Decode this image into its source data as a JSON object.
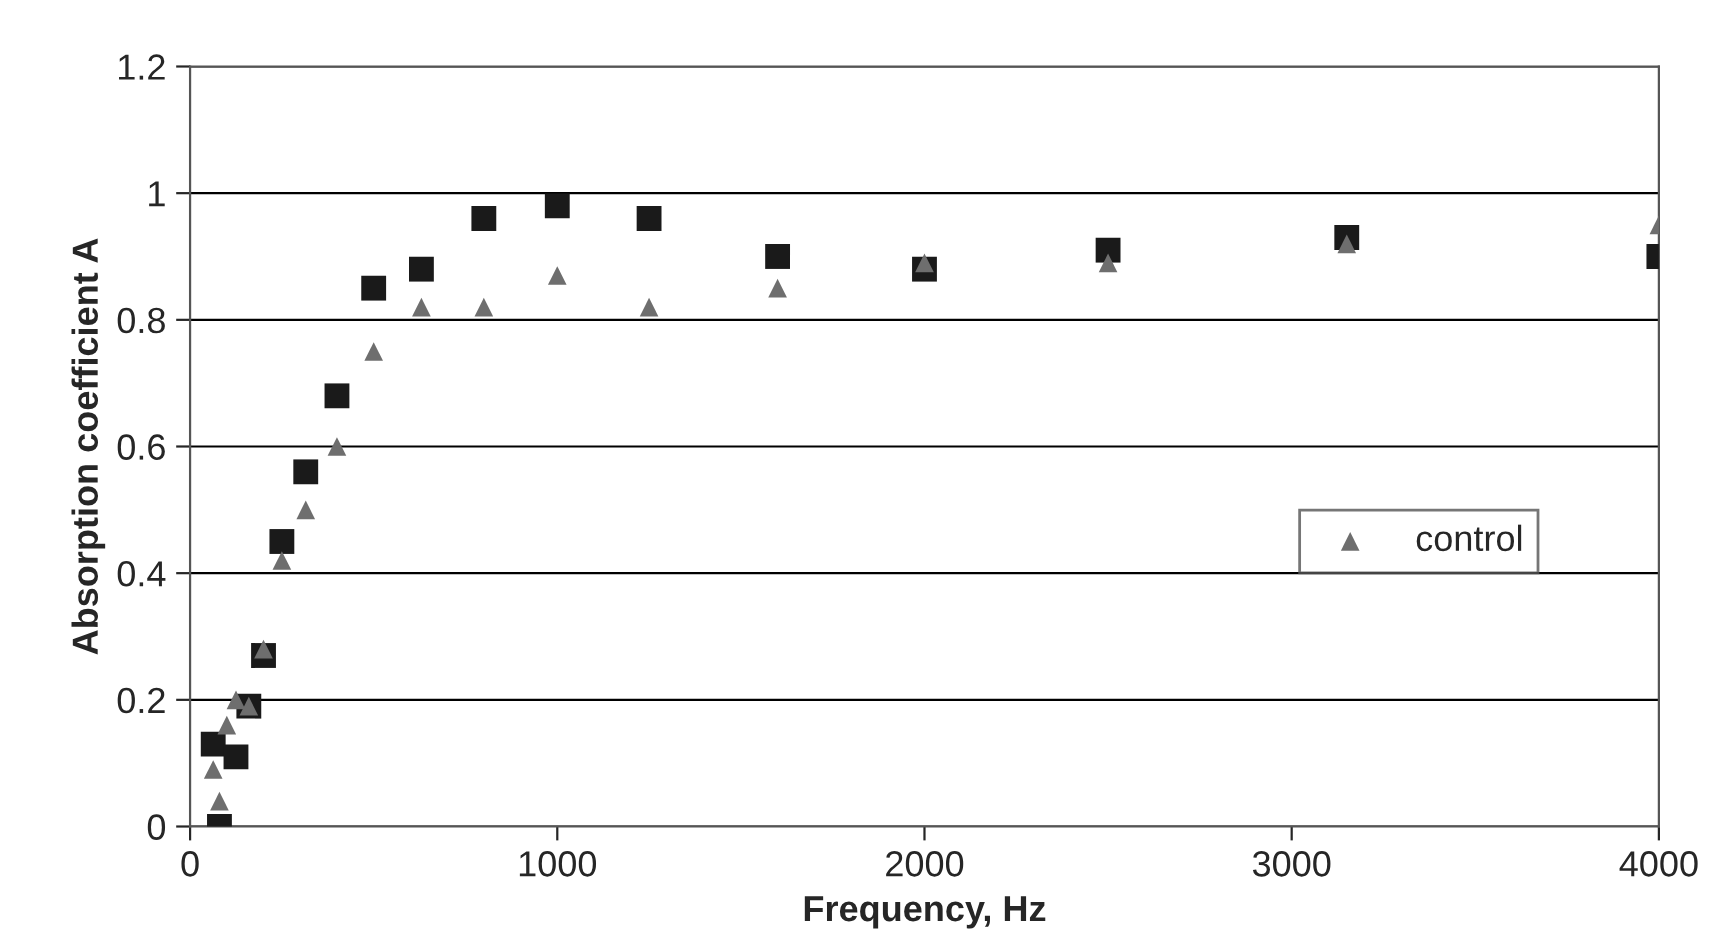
{
  "chart_data": {
    "type": "scatter",
    "xlabel": "Frequency, Hz",
    "ylabel": "Absorption coefficient A",
    "x": [
      63,
      80,
      125,
      160,
      200,
      250,
      315,
      400,
      500,
      630,
      800,
      1000,
      1250,
      1600,
      2000,
      2500,
      3150,
      4000
    ],
    "series": [
      {
        "color": "#1a1a1a",
        "marker": "square",
        "values": [
          0.13,
          0.0,
          0.11,
          0.19,
          0.27,
          0.45,
          0.56,
          0.68,
          0.85,
          0.88,
          0.96,
          0.98,
          0.96,
          0.9,
          0.88,
          0.91,
          0.93,
          0.9
        ]
      },
      {
        "name": "control",
        "color": "#6e6e6e",
        "marker": "triangle",
        "x": [
          63,
          80,
          100,
          125,
          160,
          200,
          250,
          315,
          400,
          500,
          630,
          800,
          1000,
          1250,
          1600,
          2000,
          2500,
          3150,
          4000
        ],
        "values": [
          0.09,
          0.04,
          0.16,
          0.2,
          0.19,
          0.28,
          0.42,
          0.5,
          0.6,
          0.75,
          0.82,
          0.82,
          0.87,
          0.82,
          0.85,
          0.89,
          0.89,
          0.92,
          0.95
        ]
      }
    ],
    "xlim": [
      0,
      4000
    ],
    "xticks": [
      0,
      1000,
      2000,
      3000,
      4000
    ],
    "ylim": [
      0,
      1.2
    ],
    "yticks": [
      0,
      0.2,
      0.4,
      0.6,
      0.8,
      1,
      1.2
    ],
    "grid": "y",
    "legend": "center right"
  }
}
